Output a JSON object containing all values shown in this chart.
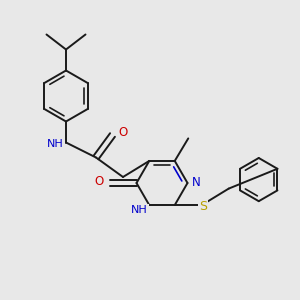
{
  "bg_color": "#e8e8e8",
  "bond_color": "#1a1a1a",
  "bond_width": 1.4,
  "N_color": "#0000cc",
  "O_color": "#cc0000",
  "S_color": "#b8a000",
  "font_size": 7.5,
  "fig_size": [
    3.0,
    3.0
  ],
  "dpi": 100,
  "xlim": [
    0.0,
    10.0
  ],
  "ylim": [
    0.0,
    10.0
  ]
}
